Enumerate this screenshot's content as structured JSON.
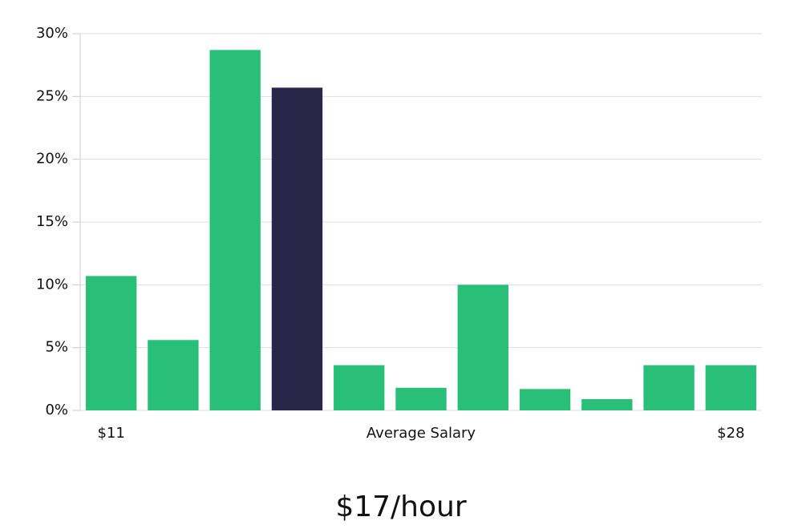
{
  "chart_data": {
    "type": "bar",
    "caption": "$17/hour",
    "xlabel": "Average Salary",
    "categories": [
      "$11",
      null,
      null,
      null,
      null,
      null,
      null,
      null,
      null,
      null,
      "$28"
    ],
    "values": [
      10.7,
      5.6,
      28.7,
      25.7,
      3.6,
      1.8,
      10.0,
      1.7,
      0.9,
      3.6,
      3.6
    ],
    "colors": [
      "#2abf78",
      "#2abf78",
      "#2abf78",
      "#29264a",
      "#2abf78",
      "#2abf78",
      "#2abf78",
      "#2abf78",
      "#2abf78",
      "#2abf78",
      "#2abf78"
    ],
    "ylim": [
      0,
      30
    ],
    "yticks": [
      {
        "value": 0,
        "label": "0%"
      },
      {
        "value": 5,
        "label": "5%"
      },
      {
        "value": 10,
        "label": "10%"
      },
      {
        "value": 15,
        "label": "15%"
      },
      {
        "value": 20,
        "label": "20%"
      },
      {
        "value": 25,
        "label": "25%"
      },
      {
        "value": 30,
        "label": "30%"
      }
    ],
    "grid": true
  }
}
